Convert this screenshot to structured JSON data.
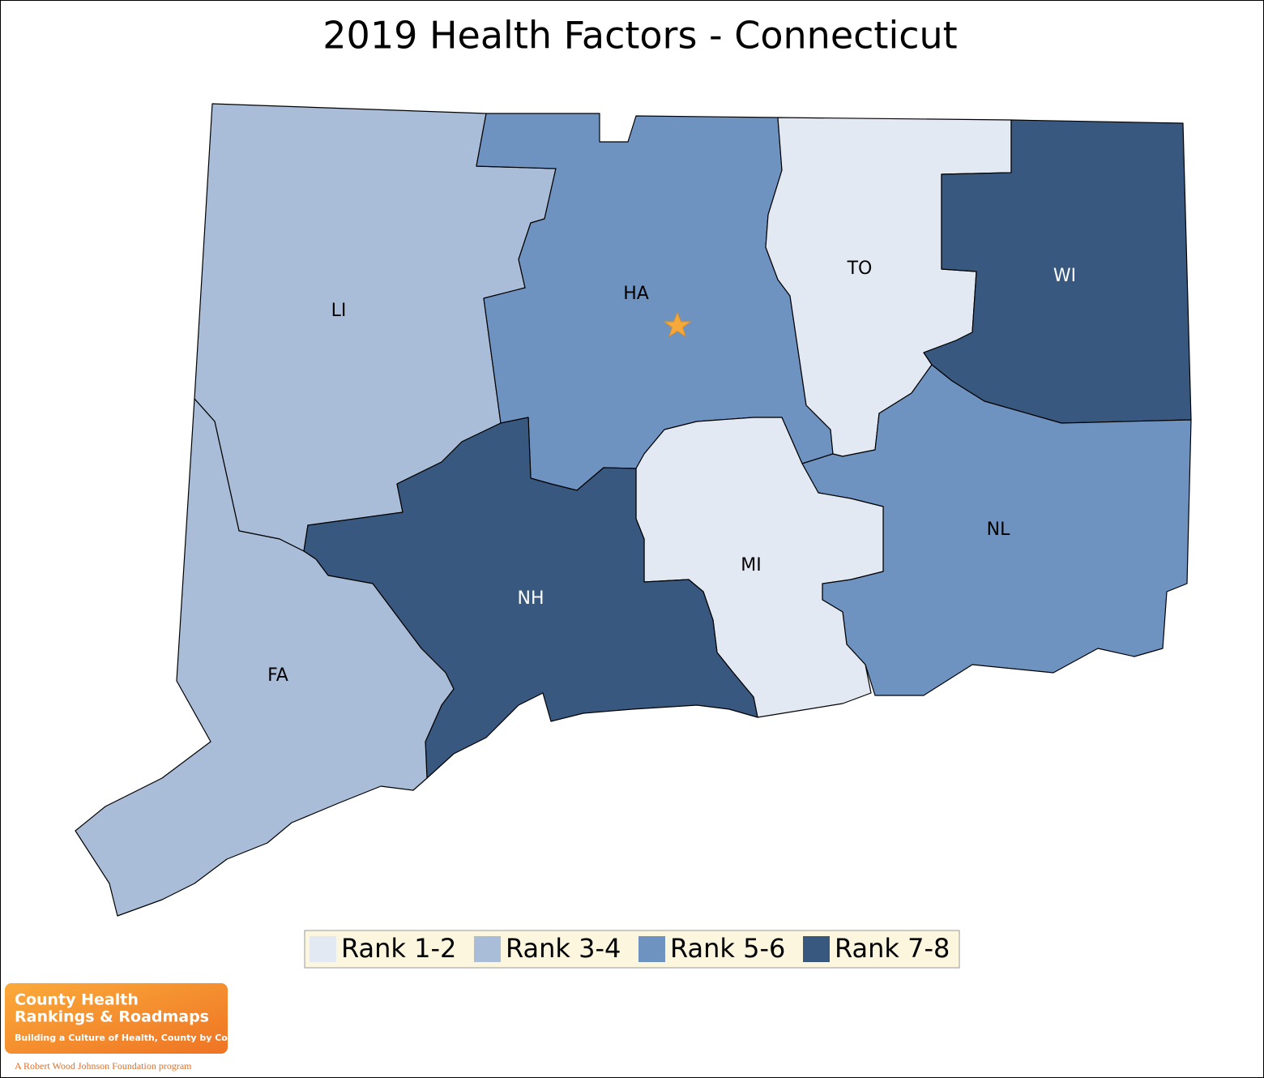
{
  "title": "2019 Health Factors - Connecticut",
  "counties": [
    {
      "label": "LI",
      "color": "#a9bdd9"
    },
    {
      "label": "HA",
      "color": "#6f93c1"
    },
    {
      "label": "TO",
      "color": "#e2e9f3"
    },
    {
      "label": "WI",
      "color": "#38587f"
    },
    {
      "label": "NL",
      "color": "#6f93c1"
    },
    {
      "label": "MI",
      "color": "#e2e9f3"
    },
    {
      "label": "NH",
      "color": "#38587f"
    },
    {
      "label": "FA",
      "color": "#a9bdd9"
    }
  ],
  "legend": [
    {
      "label": "Rank 1-2",
      "color": "#e2e9f3"
    },
    {
      "label": "Rank 3-4",
      "color": "#a9bdd9"
    },
    {
      "label": "Rank 5-6",
      "color": "#6f93c1"
    },
    {
      "label": "Rank 7-8",
      "color": "#38587f"
    }
  ],
  "logo": {
    "line1": "County Health",
    "line2": "Rankings & Roadmaps",
    "tagline": "Building a Culture of Health, County by County",
    "footer": "A Robert Wood Johnson Foundation program"
  }
}
